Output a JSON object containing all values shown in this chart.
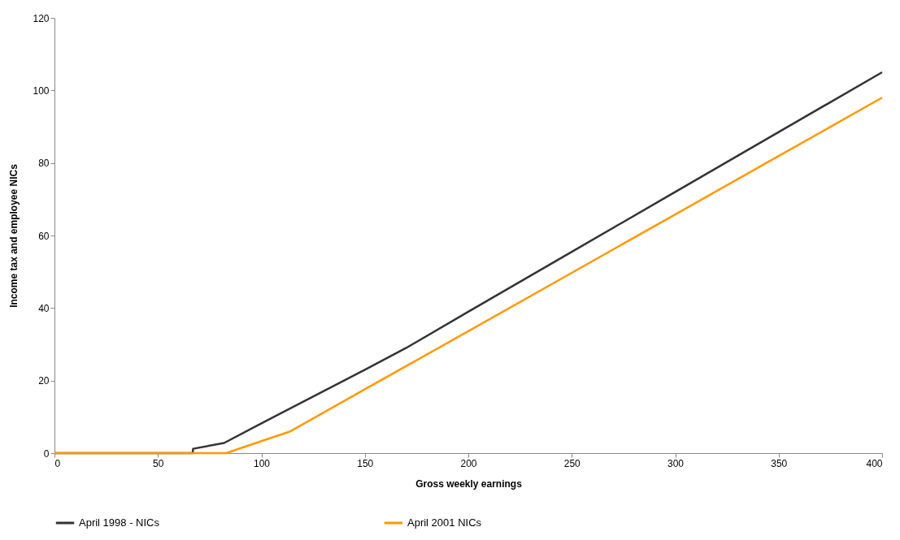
{
  "chart_data": {
    "type": "line",
    "xlabel": "Gross weekly earnings",
    "ylabel": "Income tax and employee NICs",
    "xlim": [
      0,
      400
    ],
    "ylim": [
      0,
      120
    ],
    "xticks": [
      0,
      50,
      100,
      150,
      200,
      250,
      300,
      350,
      400
    ],
    "yticks": [
      0,
      20,
      40,
      60,
      80,
      100,
      120
    ],
    "grid": false,
    "legend": "bottom",
    "marker": "none",
    "line_style": "solid",
    "series": [
      {
        "name": "April 1998 - NICs",
        "color": "#333333",
        "x": [
          0,
          66.8,
          67,
          82,
          100,
          150,
          170,
          200,
          250,
          300,
          350,
          400
        ],
        "values": [
          0,
          0,
          1.2,
          2.8,
          8.2,
          23,
          29,
          39,
          55.5,
          72,
          88.5,
          105
        ]
      },
      {
        "name": "April 2001 NICs",
        "color": "#ff9900",
        "x": [
          0,
          83,
          100,
          114,
          150,
          200,
          250,
          300,
          350,
          400
        ],
        "values": [
          0,
          0,
          3.3,
          6,
          17.6,
          33.6,
          49.7,
          65.8,
          81.9,
          98
        ]
      }
    ]
  }
}
